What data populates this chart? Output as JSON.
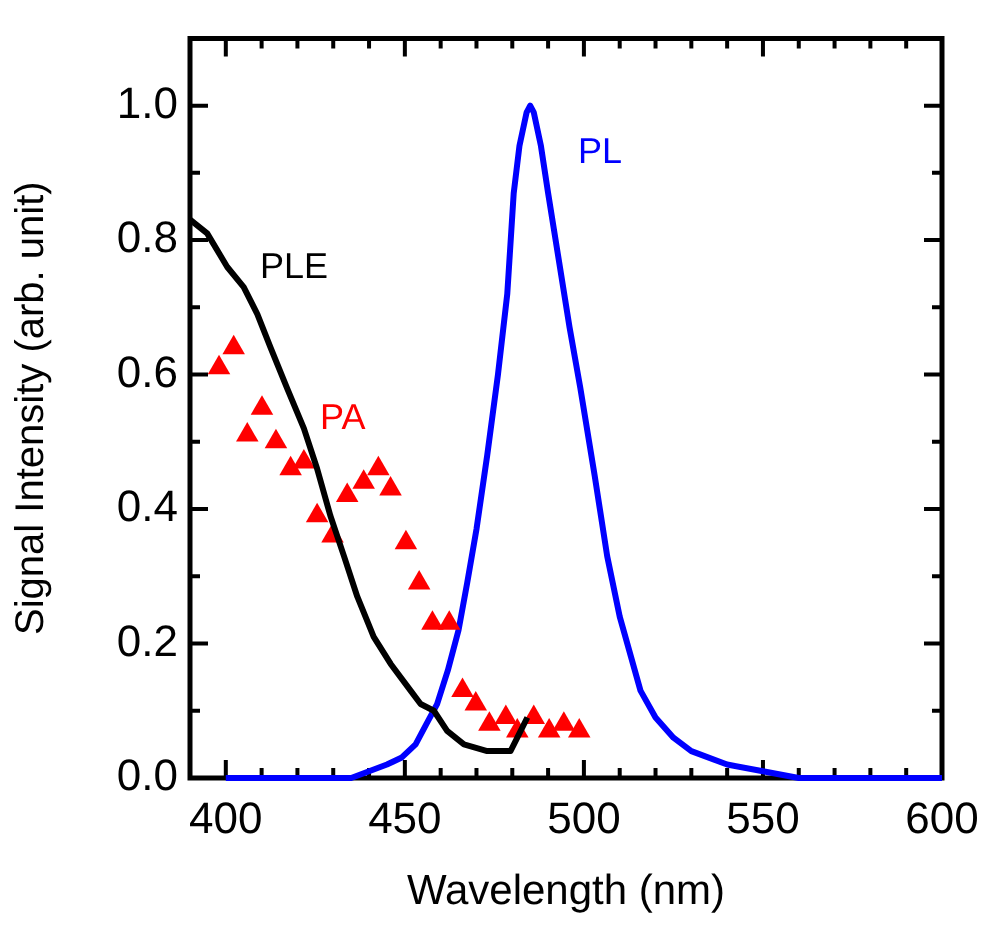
{
  "chart_data": {
    "type": "line",
    "xlabel": "Wavelength (nm)",
    "ylabel": "Signal Intensity (arb. unit)",
    "xlim": [
      390,
      600
    ],
    "ylim": [
      0,
      1.1
    ],
    "xticks": [
      400,
      {
        "value": 410,
        "label": null
      },
      {
        "value": 420,
        "label": null
      },
      {
        "value": 430,
        "label": null
      },
      {
        "value": 440,
        "label": null
      },
      450,
      {
        "value": 460,
        "label": null
      },
      {
        "value": 470,
        "label": null
      },
      {
        "value": 480,
        "label": null
      },
      {
        "value": 490,
        "label": null
      },
      500,
      {
        "value": 510,
        "label": null
      },
      {
        "value": 520,
        "label": null
      },
      {
        "value": 530,
        "label": null
      },
      {
        "value": 540,
        "label": null
      },
      550,
      {
        "value": 560,
        "label": null
      },
      {
        "value": 570,
        "label": null
      },
      {
        "value": 580,
        "label": null
      },
      {
        "value": 590,
        "label": null
      },
      600
    ],
    "yticks": [
      {
        "value": 0,
        "label": "0.0"
      },
      {
        "value": 0.1,
        "label": null
      },
      {
        "value": 0.2,
        "label": "0.2"
      },
      {
        "value": 0.3,
        "label": null
      },
      {
        "value": 0.4,
        "label": "0.4"
      },
      {
        "value": 0.5,
        "label": null
      },
      {
        "value": 0.6,
        "label": "0.6"
      },
      {
        "value": 0.7,
        "label": null
      },
      {
        "value": 0.8,
        "label": "0.8"
      },
      {
        "value": 0.9,
        "label": null
      },
      {
        "value": 1,
        "label": "1.0"
      }
    ],
    "legend": false,
    "grid": false,
    "series": [
      {
        "name": "PLE",
        "type": "line",
        "color": "#000000",
        "marker": "none",
        "x": [
          390.1,
          394.8,
          400.4,
          405.0,
          408.8,
          412.5,
          417.1,
          421.8,
          425.5,
          429.2,
          433.0,
          436.7,
          441.3,
          446.0,
          451.6,
          454.4,
          458.1,
          461.8,
          466.5,
          473.0,
          479.5,
          481.4,
          484.2
        ],
        "values": [
          0.83,
          0.81,
          0.76,
          0.73,
          0.69,
          0.64,
          0.58,
          0.52,
          0.46,
          0.39,
          0.33,
          0.27,
          0.21,
          0.17,
          0.13,
          0.11,
          0.1,
          0.07,
          0.05,
          0.04,
          0.04,
          0.06,
          0.09
        ]
      },
      {
        "name": "PA",
        "type": "scatter",
        "color": "#ff0000",
        "marker": "triangle",
        "x": [
          398.1,
          402.2,
          406.0,
          410.1,
          414.0,
          418.1,
          421.8,
          425.5,
          429.8,
          433.9,
          438.5,
          442.6,
          446.0,
          450.3,
          454.0,
          457.7,
          462.4,
          466.1,
          469.8,
          473.6,
          478.2,
          481.4,
          486.0,
          490.3,
          494.4,
          498.7
        ],
        "values": [
          0.61,
          0.64,
          0.51,
          0.55,
          0.5,
          0.46,
          0.47,
          0.39,
          0.36,
          0.42,
          0.44,
          0.46,
          0.43,
          0.35,
          0.29,
          0.23,
          0.23,
          0.13,
          0.11,
          0.08,
          0.09,
          0.07,
          0.09,
          0.07,
          0.08,
          0.07
        ]
      },
      {
        "name": "PL",
        "type": "line",
        "color": "#0000ff",
        "marker": "none",
        "x": [
          400,
          420,
          435,
          440,
          445,
          449,
          453,
          456,
          459,
          462,
          465,
          467.4,
          470,
          473,
          476,
          478.6,
          480.4,
          482,
          484,
          485,
          486,
          488,
          490,
          493,
          496,
          499,
          503,
          506.5,
          510,
          515.8,
          520,
          525,
          530,
          540,
          550,
          560,
          575,
          600
        ],
        "values": [
          0,
          0,
          0,
          0.01,
          0.02,
          0.03,
          0.05,
          0.08,
          0.11,
          0.16,
          0.22,
          0.29,
          0.37,
          0.48,
          0.6,
          0.72,
          0.87,
          0.94,
          0.99,
          1,
          0.99,
          0.94,
          0.87,
          0.77,
          0.67,
          0.58,
          0.45,
          0.33,
          0.24,
          0.13,
          0.09,
          0.06,
          0.04,
          0.02,
          0.01,
          0,
          0,
          0
        ]
      }
    ]
  }
}
